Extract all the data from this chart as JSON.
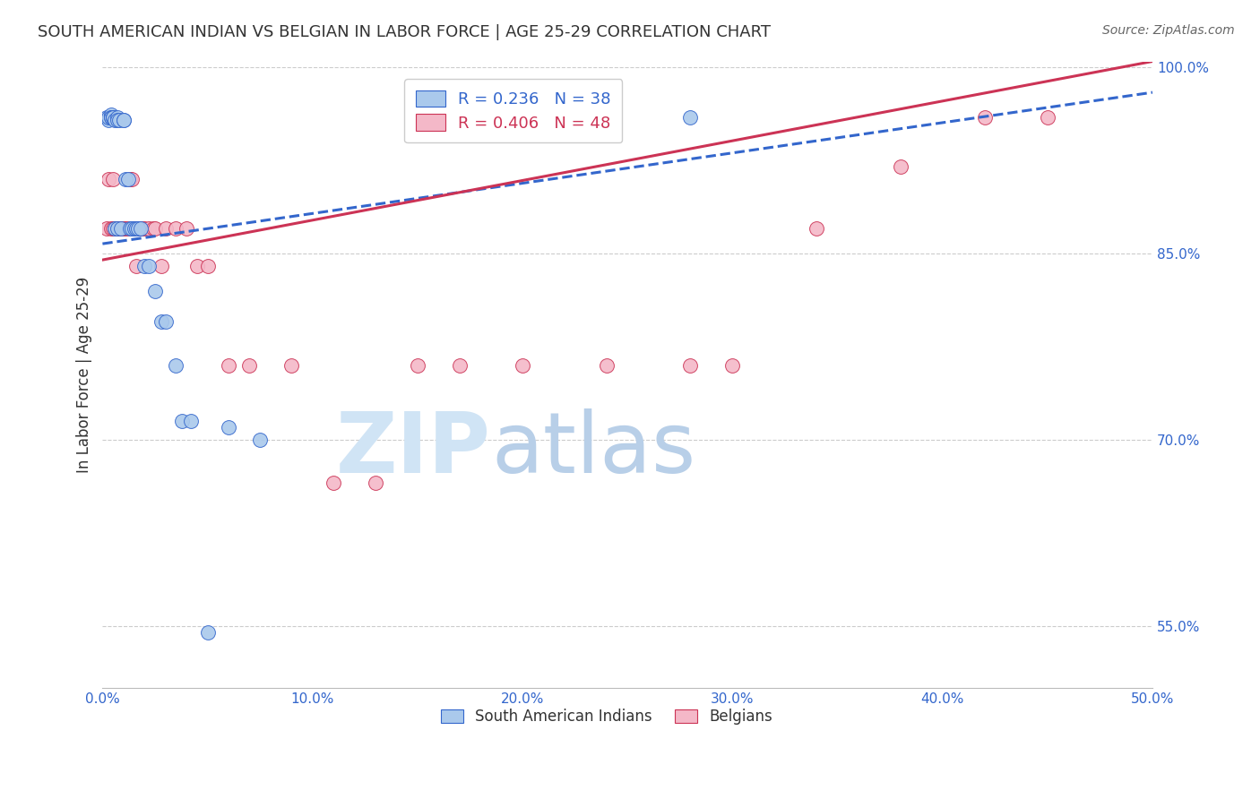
{
  "title": "SOUTH AMERICAN INDIAN VS BELGIAN IN LABOR FORCE | AGE 25-29 CORRELATION CHART",
  "source": "Source: ZipAtlas.com",
  "ylabel": "In Labor Force | Age 25-29",
  "xlim": [
    0.0,
    0.5
  ],
  "ylim": [
    0.5,
    1.005
  ],
  "yticks": [
    0.55,
    0.7,
    0.85,
    1.0
  ],
  "ytick_labels": [
    "55.0%",
    "70.0%",
    "85.0%",
    "100.0%"
  ],
  "xtick_labels": [
    "0.0%",
    "10.0%",
    "20.0%",
    "30.0%",
    "40.0%",
    "50.0%"
  ],
  "blue_R": 0.236,
  "blue_N": 38,
  "pink_R": 0.406,
  "pink_N": 48,
  "blue_color": "#aac9ec",
  "pink_color": "#f4b8c8",
  "trend_blue": "#3366cc",
  "trend_pink": "#cc3355",
  "grid_color": "#cccccc",
  "title_color": "#333333",
  "axis_color": "#3366cc",
  "legend_label_blue": "South American Indians",
  "legend_label_pink": "Belgians",
  "blue_x": [
    0.002,
    0.003,
    0.003,
    0.004,
    0.004,
    0.004,
    0.005,
    0.005,
    0.005,
    0.006,
    0.006,
    0.007,
    0.007,
    0.007,
    0.008,
    0.009,
    0.01,
    0.01,
    0.011,
    0.012,
    0.013,
    0.014,
    0.015,
    0.016,
    0.017,
    0.018,
    0.02,
    0.022,
    0.025,
    0.028,
    0.03,
    0.035,
    0.038,
    0.042,
    0.05,
    0.06,
    0.075,
    0.28
  ],
  "blue_y": [
    0.96,
    0.958,
    0.96,
    0.962,
    0.96,
    0.96,
    0.96,
    0.96,
    0.96,
    0.958,
    0.87,
    0.87,
    0.96,
    0.958,
    0.958,
    0.87,
    0.958,
    0.958,
    0.91,
    0.91,
    0.87,
    0.87,
    0.87,
    0.87,
    0.87,
    0.87,
    0.84,
    0.84,
    0.82,
    0.795,
    0.795,
    0.76,
    0.715,
    0.715,
    0.545,
    0.71,
    0.7,
    0.96
  ],
  "pink_x": [
    0.002,
    0.003,
    0.004,
    0.005,
    0.005,
    0.006,
    0.006,
    0.007,
    0.007,
    0.008,
    0.008,
    0.009,
    0.01,
    0.01,
    0.011,
    0.012,
    0.013,
    0.014,
    0.015,
    0.016,
    0.017,
    0.018,
    0.019,
    0.02,
    0.022,
    0.024,
    0.025,
    0.028,
    0.03,
    0.035,
    0.04,
    0.045,
    0.05,
    0.06,
    0.07,
    0.09,
    0.11,
    0.13,
    0.15,
    0.17,
    0.2,
    0.24,
    0.28,
    0.3,
    0.34,
    0.38,
    0.42,
    0.45
  ],
  "pink_y": [
    0.87,
    0.91,
    0.87,
    0.91,
    0.87,
    0.87,
    0.87,
    0.87,
    0.87,
    0.87,
    0.87,
    0.87,
    0.87,
    0.87,
    0.87,
    0.87,
    0.91,
    0.91,
    0.87,
    0.84,
    0.87,
    0.87,
    0.87,
    0.87,
    0.87,
    0.87,
    0.87,
    0.84,
    0.87,
    0.87,
    0.87,
    0.84,
    0.84,
    0.76,
    0.76,
    0.76,
    0.665,
    0.665,
    0.76,
    0.76,
    0.76,
    0.76,
    0.76,
    0.76,
    0.87,
    0.92,
    0.96,
    0.96
  ],
  "trend_blue_x0": 0.0,
  "trend_blue_x1": 0.5,
  "trend_blue_y0": 0.858,
  "trend_blue_y1": 0.98,
  "trend_pink_x0": 0.0,
  "trend_pink_x1": 0.5,
  "trend_pink_y0": 0.845,
  "trend_pink_y1": 1.005
}
